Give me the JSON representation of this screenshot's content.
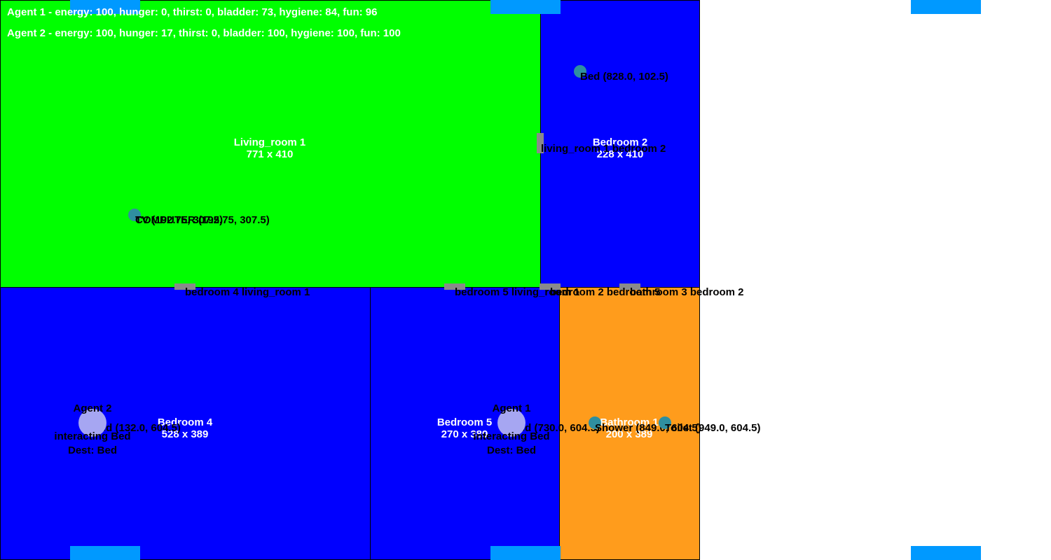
{
  "colors": {
    "living_room": "#00ff00",
    "bedroom": "#0000ff",
    "bathroom": "#ff9c1c",
    "door": "#8a8a8a",
    "object": "#2f8fa0",
    "agent": "#a6a6f2",
    "marker": "#0099ff"
  },
  "status": [
    "Agent 1 - energy: 100, hunger: 0, thirst: 0, bladder: 73, hygiene: 84, fun: 96",
    "Agent 2 - energy: 100, hunger: 17, thirst: 0, bladder: 100, hygiene: 100, fun: 100"
  ],
  "rooms": [
    {
      "name": "Living_room 1",
      "size": "771 x 410"
    },
    {
      "name": "Bedroom 2",
      "size": "228 x 410"
    },
    {
      "name": "Bedroom 4",
      "size": "528 x 389"
    },
    {
      "name": "Bedroom 5",
      "size": "270 x 389"
    },
    {
      "name": "Bathroom 1",
      "size": "200 x 389"
    }
  ],
  "doors": [
    "living_room 1 bedroom 2",
    "bedroom 4 living_room 1",
    "bedroom 5 living_room 1",
    "bedroom 2 bedroom 5",
    "bathroom 3 bedroom 2"
  ],
  "objects": [
    "Bed (828.0, 102.5)",
    "COMPUTER (192.75, 307.5)",
    "TV (192.75, 307.5)",
    "Bed (132.0, 604.5)",
    "Bed (730.0, 604.5)",
    "Shower (849.0, 604.5)",
    "Toilet (949.0, 604.5)"
  ],
  "agents": [
    {
      "name": "Agent 2",
      "state": "interacting Bed",
      "dest": "Dest: Bed"
    },
    {
      "name": "Agent 1",
      "state": "interacting Bed",
      "dest": "Dest: Bed"
    }
  ]
}
